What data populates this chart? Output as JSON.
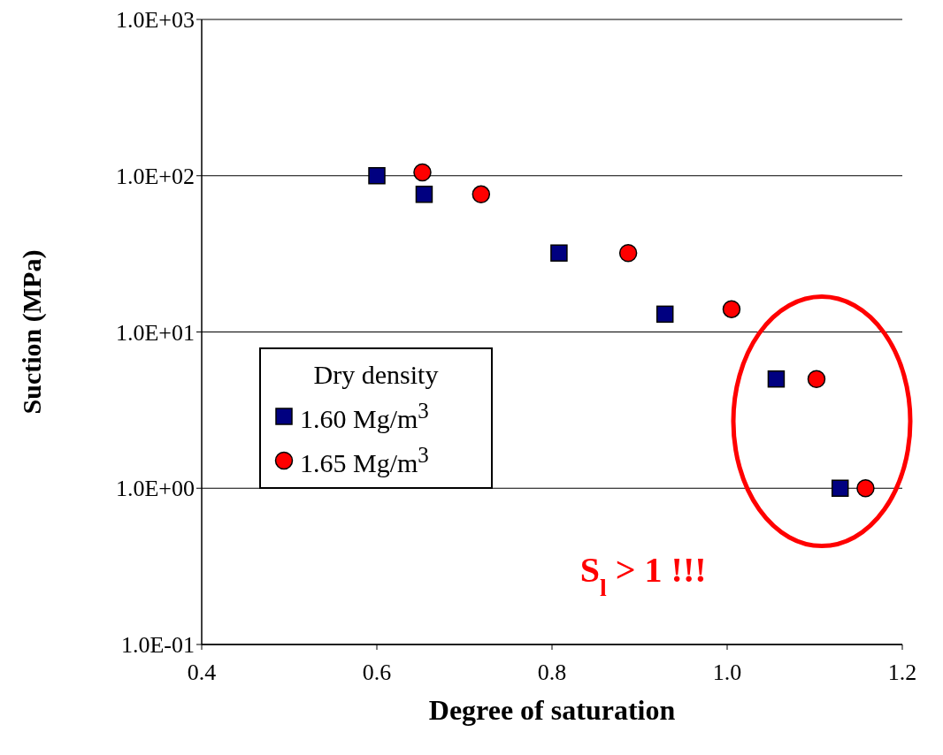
{
  "chart_data": {
    "type": "scatter",
    "xlabel": "Degree of saturation",
    "ylabel": "Suction (MPa)",
    "legend_title": "Dry density",
    "xlim": [
      0.4,
      1.2
    ],
    "xticks": [
      {
        "value": 0.4,
        "label": "0.4"
      },
      {
        "value": 0.6,
        "label": "0.6"
      },
      {
        "value": 0.8,
        "label": "0.8"
      },
      {
        "value": 1.0,
        "label": "1.0"
      },
      {
        "value": 1.2,
        "label": "1.2"
      }
    ],
    "ylim": [
      0.1,
      1000
    ],
    "yticks": [
      {
        "value": 0.1,
        "label": "1.0E-01"
      },
      {
        "value": 1,
        "label": "1.0E+00"
      },
      {
        "value": 10,
        "label": "1.0E+01"
      },
      {
        "value": 100,
        "label": "1.0E+02"
      },
      {
        "value": 1000,
        "label": "1.0E+03"
      }
    ],
    "log": "y",
    "grid": "y",
    "legend": "left",
    "series": [
      {
        "name": "1.60 Mg/m$^{3}$",
        "color": "#000080",
        "marker": "square",
        "x": [
          0.6,
          0.654,
          0.808,
          0.929,
          1.056,
          1.129
        ],
        "values": [
          100,
          76,
          32,
          13,
          5,
          1
        ]
      },
      {
        "name": "1.65 Mg/m$^{3}$",
        "color": "#ff0000",
        "marker": "circle",
        "x": [
          0.652,
          0.719,
          0.887,
          1.005,
          1.102,
          1.158
        ],
        "values": [
          105,
          76,
          32,
          14,
          5,
          1
        ]
      }
    ],
    "annotations": [
      "S$_{l}$ > 1 !!!"
    ]
  }
}
